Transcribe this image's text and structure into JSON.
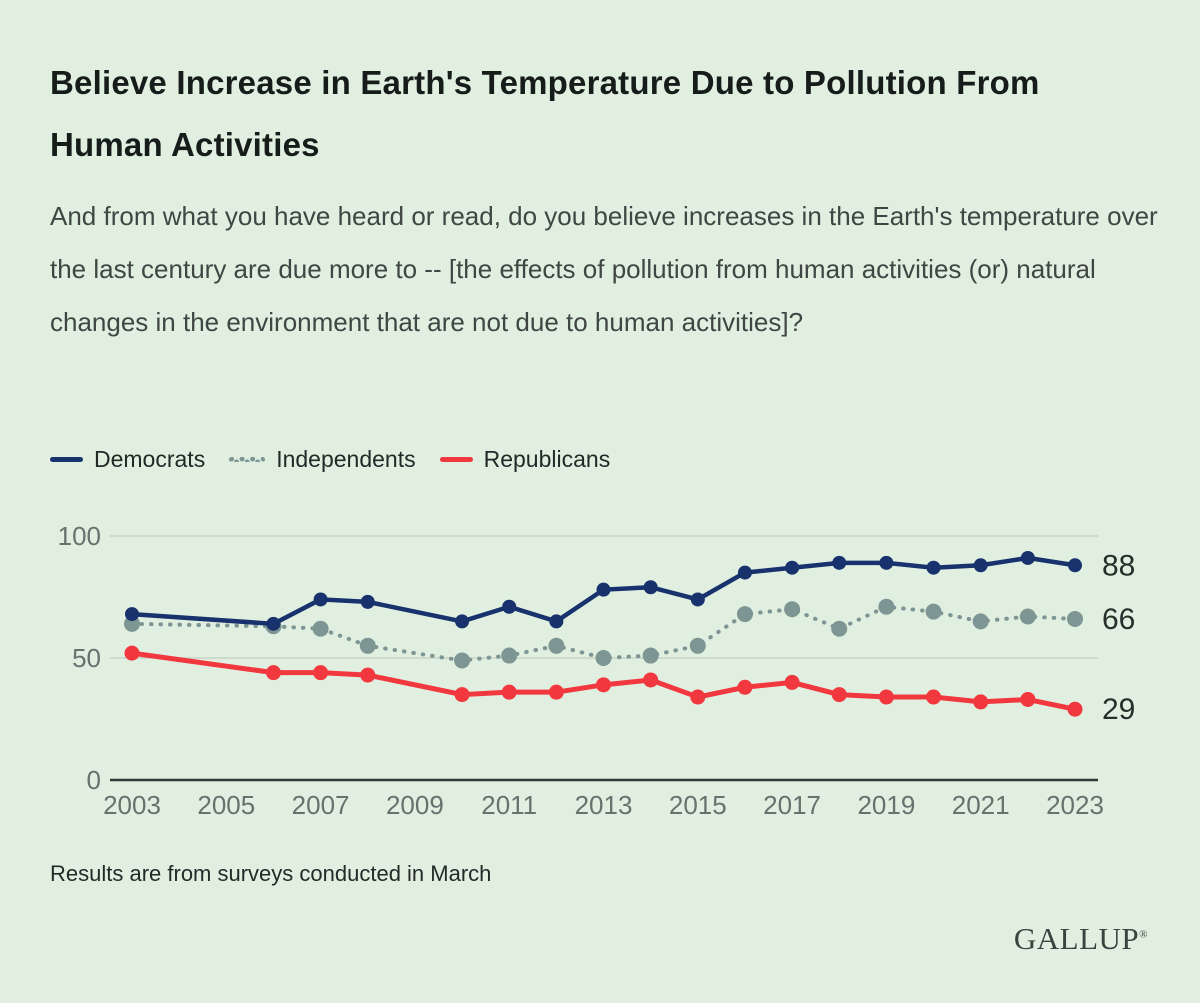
{
  "title": "Believe Increase in Earth's Temperature Due to Pollution From Human Activities",
  "subtitle": "And from what you have heard or read, do you believe increases in the Earth's temperature over the last century are due more to -- [the effects of pollution from human activities (or) natural changes in the environment that are not due to human activities]?",
  "footnote": "Results are from surveys conducted in March",
  "logo_text": "GALLUP",
  "logo_mark": "®",
  "colors": {
    "background": "#e1efe0",
    "title_text": "#161c1a",
    "body_text": "#3f4643",
    "tick_text": "#67716d",
    "end_label_text": "#272e2c",
    "gridline": "#c7d3c5",
    "axis_line": "#2f3836"
  },
  "chart_data": {
    "type": "line",
    "title": "Believe Increase in Earth's Temperature Due to Pollution From Human Activities",
    "xlabel": "",
    "ylabel": "",
    "xlim": [
      2003,
      2023
    ],
    "ylim": [
      0,
      100
    ],
    "grid": "horizontal-at-50-and-100",
    "legend_position": "top-left",
    "x": [
      2003,
      2006,
      2007,
      2008,
      2010,
      2011,
      2012,
      2013,
      2014,
      2015,
      2016,
      2017,
      2018,
      2019,
      2020,
      2021,
      2022,
      2023
    ],
    "x_ticks": [
      "2003",
      "2005",
      "2007",
      "2009",
      "2011",
      "2013",
      "2015",
      "2017",
      "2019",
      "2021",
      "2023"
    ],
    "y_ticks": [
      "0",
      "50",
      "100"
    ],
    "series": [
      {
        "name": "Democrats",
        "color": "#17326c",
        "line_style": "solid",
        "end_label": "88",
        "values": [
          68,
          64,
          74,
          73,
          65,
          71,
          65,
          78,
          79,
          74,
          85,
          87,
          89,
          89,
          87,
          88,
          91,
          88
        ]
      },
      {
        "name": "Independents",
        "color": "#7d9693",
        "line_style": "dotted",
        "end_label": "66",
        "values": [
          64,
          63,
          62,
          55,
          49,
          51,
          55,
          50,
          51,
          55,
          68,
          70,
          62,
          71,
          69,
          65,
          67,
          66
        ]
      },
      {
        "name": "Republicans",
        "color": "#f2383f",
        "line_style": "solid",
        "end_label": "29",
        "values": [
          52,
          44,
          44,
          43,
          35,
          36,
          36,
          39,
          41,
          34,
          38,
          40,
          35,
          34,
          34,
          32,
          33,
          29
        ]
      }
    ]
  }
}
